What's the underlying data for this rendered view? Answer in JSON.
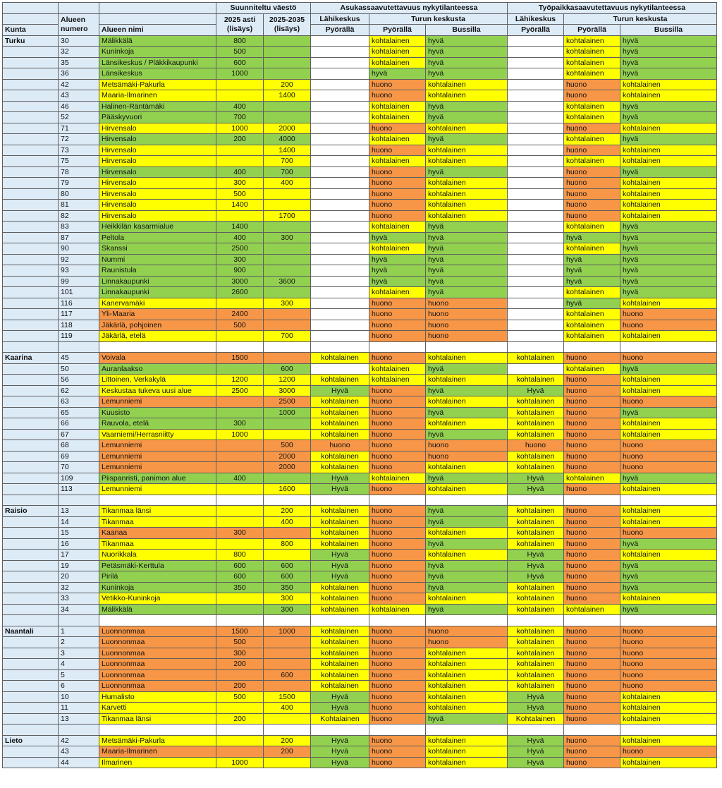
{
  "colors": {
    "good": "#92d050",
    "moderate": "#ffff00",
    "poor": "#f79646",
    "label_col": "#ddebf7"
  },
  "header": {
    "planned_population": "Suunniteltu väestö",
    "resident_access": "Asukassaavutettavuus nykytilanteessa",
    "workplace_access": "Työpaikkasaavutettavuus nykytilanteessa",
    "local_center": "Lähikeskus",
    "turku_center": "Turun keskusta",
    "kunta": "Kunta",
    "area_number": [
      "Alueen",
      "numero"
    ],
    "area_name": "Alueen nimi",
    "y2025": [
      "2025 asti",
      "(lisäys)"
    ],
    "y2035": [
      "2025-2035",
      "(lisäys)"
    ],
    "bike": "Pyörällä",
    "bus": "Bussilla"
  },
  "rows": [
    {
      "k": "Turku",
      "n": "30",
      "name": "Mälikkälä",
      "a": "800",
      "b": "",
      "lr": "",
      "br": "kohtalainen",
      "bus": "hyvä",
      "lw": "",
      "bw": "kohtalainen",
      "buw": "hyvä",
      "bg": "G"
    },
    {
      "k": "",
      "n": "32",
      "name": "Kuninkoja",
      "a": "500",
      "b": "",
      "lr": "",
      "br": "kohtalainen",
      "bus": "hyvä",
      "lw": "",
      "bw": "kohtalainen",
      "buw": "hyvä",
      "bg": "G"
    },
    {
      "k": "",
      "n": "35",
      "name": "Länsikeskus / Pläkkikaupunki",
      "a": "600",
      "b": "",
      "lr": "",
      "br": "kohtalainen",
      "bus": "hyvä",
      "lw": "",
      "bw": "kohtalainen",
      "buw": "hyvä",
      "bg": "G"
    },
    {
      "k": "",
      "n": "36",
      "name": "Länsikeskus",
      "a": "1000",
      "b": "",
      "lr": "",
      "br": "hyvä",
      "bus": "hyvä",
      "lw": "",
      "bw": "kohtalainen",
      "buw": "hyvä",
      "bg": "G"
    },
    {
      "k": "",
      "n": "42",
      "name": "Metsämäki-Pakurla",
      "a": "",
      "b": "200",
      "lr": "",
      "br": "huono",
      "bus": "kohtalainen",
      "lw": "",
      "bw": "huono",
      "buw": "kohtalainen",
      "bg": "Y"
    },
    {
      "k": "",
      "n": "43",
      "name": "Maaria-Ilmarinen",
      "a": "",
      "b": "1400",
      "lr": "",
      "br": "huono",
      "bus": "kohtalainen",
      "lw": "",
      "bw": "huono",
      "buw": "kohtalainen",
      "bg": "Y"
    },
    {
      "k": "",
      "n": "46",
      "name": "Halinen-Räntämäki",
      "a": "400",
      "b": "",
      "lr": "",
      "br": "kohtalainen",
      "bus": "hyvä",
      "lw": "",
      "bw": "kohtalainen",
      "buw": "hyvä",
      "bg": "G"
    },
    {
      "k": "",
      "n": "52",
      "name": "Pääskyvuori",
      "a": "700",
      "b": "",
      "lr": "",
      "br": "kohtalainen",
      "bus": "hyvä",
      "lw": "",
      "bw": "kohtalainen",
      "buw": "hyvä",
      "bg": "G"
    },
    {
      "k": "",
      "n": "71",
      "name": "Hirvensalo",
      "a": "1000",
      "b": "2000",
      "lr": "",
      "br": "huono",
      "bus": "kohtalainen",
      "lw": "",
      "bw": "huono",
      "buw": "kohtalainen",
      "bg": "Y"
    },
    {
      "k": "",
      "n": "72",
      "name": "Hirvensalo",
      "a": "200",
      "b": "4000",
      "lr": "",
      "br": "kohtalainen",
      "bus": "hyvä",
      "lw": "",
      "bw": "kohtalainen",
      "buw": "hyvä",
      "bg": "G"
    },
    {
      "k": "",
      "n": "73",
      "name": "Hirvensalo",
      "a": "",
      "b": "1400",
      "lr": "",
      "br": "huono",
      "bus": "kohtalainen",
      "lw": "",
      "bw": "huono",
      "buw": "kohtalainen",
      "bg": "Y"
    },
    {
      "k": "",
      "n": "75",
      "name": "Hirvensalo",
      "a": "",
      "b": "700",
      "lr": "",
      "br": "kohtalainen",
      "bus": "kohtalainen",
      "lw": "",
      "bw": "kohtalainen",
      "buw": "kohtalainen",
      "bg": "Y"
    },
    {
      "k": "",
      "n": "78",
      "name": "Hirvensalo",
      "a": "400",
      "b": "700",
      "lr": "",
      "br": "huono",
      "bus": "hyvä",
      "lw": "",
      "bw": "huono",
      "buw": "hyvä",
      "bg": "G"
    },
    {
      "k": "",
      "n": "79",
      "name": "Hirvensalo",
      "a": "300",
      "b": "400",
      "lr": "",
      "br": "huono",
      "bus": "kohtalainen",
      "lw": "",
      "bw": "huono",
      "buw": "kohtalainen",
      "bg": "Y"
    },
    {
      "k": "",
      "n": "80",
      "name": "Hirvensalo",
      "a": "500",
      "b": "",
      "lr": "",
      "br": "huono",
      "bus": "kohtalainen",
      "lw": "",
      "bw": "huono",
      "buw": "kohtalainen",
      "bg": "Y"
    },
    {
      "k": "",
      "n": "81",
      "name": "Hirvensalo",
      "a": "1400",
      "b": "",
      "lr": "",
      "br": "huono",
      "bus": "kohtalainen",
      "lw": "",
      "bw": "huono",
      "buw": "kohtalainen",
      "bg": "Y"
    },
    {
      "k": "",
      "n": "82",
      "name": "Hirvensalo",
      "a": "",
      "b": "1700",
      "lr": "",
      "br": "huono",
      "bus": "kohtalainen",
      "lw": "",
      "bw": "huono",
      "buw": "kohtalainen",
      "bg": "Y"
    },
    {
      "k": "",
      "n": "83",
      "name": "Heikkilän kasarmialue",
      "a": "1400",
      "b": "",
      "lr": "",
      "br": "kohtalainen",
      "bus": "hyvä",
      "lw": "",
      "bw": "kohtalainen",
      "buw": "hyvä",
      "bg": "G"
    },
    {
      "k": "",
      "n": "87",
      "name": "Peltola",
      "a": "400",
      "b": "300",
      "lr": "",
      "br": "hyvä",
      "bus": "hyvä",
      "lw": "",
      "bw": "hyvä",
      "buw": "hyvä",
      "bg": "G"
    },
    {
      "k": "",
      "n": "90",
      "name": "Skanssi",
      "a": "2500",
      "b": "",
      "lr": "",
      "br": "kohtalainen",
      "bus": "hyvä",
      "lw": "",
      "bw": "kohtalainen",
      "buw": "hyvä",
      "bg": "G"
    },
    {
      "k": "",
      "n": "92",
      "name": "Nummi",
      "a": "300",
      "b": "",
      "lr": "",
      "br": "hyvä",
      "bus": "hyvä",
      "lw": "",
      "bw": "hyvä",
      "buw": "hyvä",
      "bg": "G"
    },
    {
      "k": "",
      "n": "93",
      "name": "Raunistula",
      "a": "900",
      "b": "",
      "lr": "",
      "br": "hyvä",
      "bus": "hyvä",
      "lw": "",
      "bw": "hyvä",
      "buw": "hyvä",
      "bg": "G"
    },
    {
      "k": "",
      "n": "99",
      "name": "Linnakaupunki",
      "a": "3000",
      "b": "3600",
      "lr": "",
      "br": "hyvä",
      "bus": "hyvä",
      "lw": "",
      "bw": "hyvä",
      "buw": "hyvä",
      "bg": "G"
    },
    {
      "k": "",
      "n": "101",
      "name": "Linnakaupunki",
      "a": "2600",
      "b": "",
      "lr": "",
      "br": "kohtalainen",
      "bus": "hyvä",
      "lw": "",
      "bw": "kohtalainen",
      "buw": "hyvä",
      "bg": "G"
    },
    {
      "k": "",
      "n": "116",
      "name": "Kanervamäki",
      "a": "",
      "b": "300",
      "lr": "",
      "br": "huono",
      "bus": "huono",
      "lw": "",
      "bw": "hyvä",
      "buw": "kohtalainen",
      "bg": "Y"
    },
    {
      "k": "",
      "n": "117",
      "name": "Yli-Maaria",
      "a": "2400",
      "b": "",
      "lr": "",
      "br": "huono",
      "bus": "huono",
      "lw": "",
      "bw": "kohtalainen",
      "buw": "huono",
      "bg": "O"
    },
    {
      "k": "",
      "n": "118",
      "name": "Jäkärlä, pohjoinen",
      "a": "500",
      "b": "",
      "lr": "",
      "br": "huono",
      "bus": "huono",
      "lw": "",
      "bw": "kohtalainen",
      "buw": "huono",
      "bg": "O"
    },
    {
      "k": "",
      "n": "119",
      "name": "Jäkärlä, etelä",
      "a": "",
      "b": "700",
      "lr": "",
      "br": "huono",
      "bus": "huono",
      "lw": "",
      "bw": "kohtalainen",
      "buw": "kohtalainen",
      "bg": "Y"
    },
    null,
    {
      "k": "Kaarina",
      "n": "45",
      "name": "Voivala",
      "a": "1500",
      "b": "",
      "lr": "kohtalainen",
      "br": "huono",
      "bus": "kohtalainen",
      "lw": "kohtalainen",
      "bw": "huono",
      "buw": "huono",
      "bg": "O"
    },
    {
      "k": "",
      "n": "50",
      "name": "Auranlaakso",
      "a": "",
      "b": "600",
      "lr": "",
      "br": "kohtalainen",
      "bus": "hyvä",
      "lw": "",
      "bw": "kohtalainen",
      "buw": "hyvä",
      "bg": "G"
    },
    {
      "k": "",
      "n": "56",
      "name": "Littoinen, Verkakylä",
      "a": "1200",
      "b": "1200",
      "lr": "kohtalainen",
      "br": "kohtalainen",
      "bus": "kohtalainen",
      "lw": "kohtalainen",
      "bw": "huono",
      "buw": "kohtalainen",
      "bg": "Y"
    },
    {
      "k": "",
      "n": "62",
      "name": "Keskustaa tukeva uusi alue",
      "a": "2500",
      "b": "3000",
      "lr": "Hyvä",
      "br": "huono",
      "bus": "hyvä",
      "lw": "Hyvä",
      "bw": "huono",
      "buw": "kohtalainen",
      "bg": "Y"
    },
    {
      "k": "",
      "n": "63",
      "name": "Lemunniemi",
      "a": "",
      "b": "2500",
      "lr": "kohtalainen",
      "br": "huono",
      "bus": "kohtalainen",
      "lw": "kohtalainen",
      "bw": "huono",
      "buw": "huono",
      "bg": "O"
    },
    {
      "k": "",
      "n": "65",
      "name": "Kuusisto",
      "a": "",
      "b": "1000",
      "lr": "kohtalainen",
      "br": "huono",
      "bus": "hyvä",
      "lw": "kohtalainen",
      "bw": "huono",
      "buw": "hyvä",
      "bg": "G"
    },
    {
      "k": "",
      "n": "66",
      "name": "Rauvola, etelä",
      "a": "300",
      "b": "",
      "lr": "kohtalainen",
      "br": "huono",
      "bus": "kohtalainen",
      "lw": "kohtalainen",
      "bw": "huono",
      "buw": "kohtalainen",
      "bg": "G"
    },
    {
      "k": "",
      "n": "67",
      "name": "Vaarniemi/Herrasniitty",
      "a": "1000",
      "b": "",
      "lr": "kohtalainen",
      "br": "huono",
      "bus": "hyvä",
      "lw": "kohtalainen",
      "bw": "huono",
      "buw": "kohtalainen",
      "bg": "Y"
    },
    {
      "k": "",
      "n": "68",
      "name": "Lemunniemi",
      "a": "",
      "b": "500",
      "lr": "huono",
      "br": "huono",
      "bus": "huono",
      "lw": "huono",
      "bw": "huono",
      "buw": "huono",
      "bg": "O"
    },
    {
      "k": "",
      "n": "69",
      "name": "Lemunniemi",
      "a": "",
      "b": "2000",
      "lr": "kohtalainen",
      "br": "huono",
      "bus": "huono",
      "lw": "kohtalainen",
      "bw": "huono",
      "buw": "huono",
      "bg": "O"
    },
    {
      "k": "",
      "n": "70",
      "name": "Lemunniemi",
      "a": "",
      "b": "2000",
      "lr": "kohtalainen",
      "br": "huono",
      "bus": "kohtalainen",
      "lw": "kohtalainen",
      "bw": "huono",
      "buw": "huono",
      "bg": "O"
    },
    {
      "k": "",
      "n": "109",
      "name": "Piispanristi, panimon alue",
      "a": "400",
      "b": "",
      "lr": "Hyvä",
      "br": "kohtalainen",
      "bus": "hyvä",
      "lw": "Hyvä",
      "bw": "kohtalainen",
      "buw": "hyvä",
      "bg": "G"
    },
    {
      "k": "",
      "n": "113",
      "name": "Lemunniemi",
      "a": "",
      "b": "1600",
      "lr": "Hyvä",
      "br": "huono",
      "bus": "kohtalainen",
      "lw": "Hyvä",
      "bw": "huono",
      "buw": "kohtalainen",
      "bg": "Y"
    },
    null,
    {
      "k": "Raisio",
      "n": "13",
      "name": "Tikanmaa länsi",
      "a": "",
      "b": "200",
      "lr": "kohtalainen",
      "br": "huono",
      "bus": "hyvä",
      "lw": "kohtalainen",
      "bw": "huono",
      "buw": "kohtalainen",
      "bg": "Y"
    },
    {
      "k": "",
      "n": "14",
      "name": "Tikanmaa",
      "a": "",
      "b": "400",
      "lr": "kohtalainen",
      "br": "huono",
      "bus": "hyvä",
      "lw": "kohtalainen",
      "bw": "huono",
      "buw": "kohtalainen",
      "bg": "Y"
    },
    {
      "k": "",
      "n": "15",
      "name": "Kaanaa",
      "a": "300",
      "b": "",
      "lr": "kohtalainen",
      "br": "huono",
      "bus": "kohtalainen",
      "lw": "kohtalainen",
      "bw": "huono",
      "buw": "huono",
      "bg": "O"
    },
    {
      "k": "",
      "n": "16",
      "name": "Tikanmaa",
      "a": "",
      "b": "800",
      "lr": "kohtalainen",
      "br": "huono",
      "bus": "hyvä",
      "lw": "kohtalainen",
      "bw": "huono",
      "buw": "hyvä",
      "bg": "Y"
    },
    {
      "k": "",
      "n": "17",
      "name": "Nuorikkala",
      "a": "800",
      "b": "",
      "lr": "Hyvä",
      "br": "huono",
      "bus": "kohtalainen",
      "lw": "Hyvä",
      "bw": "huono",
      "buw": "kohtalainen",
      "bg": "Y"
    },
    {
      "k": "",
      "n": "19",
      "name": "Petäsmäki-Kerttula",
      "a": "600",
      "b": "600",
      "lr": "Hyvä",
      "br": "huono",
      "bus": "hyvä",
      "lw": "Hyvä",
      "bw": "huono",
      "buw": "hyvä",
      "bg": "G"
    },
    {
      "k": "",
      "n": "20",
      "name": "Pirilä",
      "a": "600",
      "b": "600",
      "lr": "Hyvä",
      "br": "huono",
      "bus": "hyvä",
      "lw": "Hyvä",
      "bw": "huono",
      "buw": "hyvä",
      "bg": "G"
    },
    {
      "k": "",
      "n": "32",
      "name": "Kuninkoja",
      "a": "350",
      "b": "350",
      "lr": "kohtalainen",
      "br": "huono",
      "bus": "hyvä",
      "lw": "kohtalainen",
      "bw": "huono",
      "buw": "hyvä",
      "bg": "G"
    },
    {
      "k": "",
      "n": "33",
      "name": "Vetikko-Kuninkoja",
      "a": "",
      "b": "300",
      "lr": "kohtalainen",
      "br": "huono",
      "bus": "kohtalainen",
      "lw": "kohtalainen",
      "bw": "huono",
      "buw": "kohtalainen",
      "bg": "Y"
    },
    {
      "k": "",
      "n": "34",
      "name": "Mälikkälä",
      "a": "",
      "b": "300",
      "lr": "kohtalainen",
      "br": "kohtalainen",
      "bus": "hyvä",
      "lw": "kohtalainen",
      "bw": "kohtalainen",
      "buw": "hyvä",
      "bg": "G"
    },
    null,
    {
      "k": "Naantali",
      "n": "1",
      "name": "Luonnonmaa",
      "a": "1500",
      "b": "1000",
      "lr": "kohtalainen",
      "br": "huono",
      "bus": "huono",
      "lw": "kohtalainen",
      "bw": "huono",
      "buw": "huono",
      "bg": "O"
    },
    {
      "k": "",
      "n": "2",
      "name": "Luonnonmaa",
      "a": "500",
      "b": "",
      "lr": "kohtalainen",
      "br": "huono",
      "bus": "huono",
      "lw": "kohtalainen",
      "bw": "huono",
      "buw": "huono",
      "bg": "O"
    },
    {
      "k": "",
      "n": "3",
      "name": "Luonnonmaa",
      "a": "300",
      "b": "",
      "lr": "kohtalainen",
      "br": "huono",
      "bus": "kohtalainen",
      "lw": "kohtalainen",
      "bw": "huono",
      "buw": "huono",
      "bg": "O"
    },
    {
      "k": "",
      "n": "4",
      "name": "Luonnonmaa",
      "a": "200",
      "b": "",
      "lr": "kohtalainen",
      "br": "huono",
      "bus": "kohtalainen",
      "lw": "kohtalainen",
      "bw": "huono",
      "buw": "huono",
      "bg": "O"
    },
    {
      "k": "",
      "n": "5",
      "name": "Luonnonmaa",
      "a": "",
      "b": "600",
      "lr": "kohtalainen",
      "br": "huono",
      "bus": "kohtalainen",
      "lw": "kohtalainen",
      "bw": "huono",
      "buw": "huono",
      "bg": "O"
    },
    {
      "k": "",
      "n": "6",
      "name": "Luonnonmaa",
      "a": "200",
      "b": "",
      "lr": "kohtalainen",
      "br": "huono",
      "bus": "kohtalainen",
      "lw": "kohtalainen",
      "bw": "huono",
      "buw": "huono",
      "bg": "O"
    },
    {
      "k": "",
      "n": "10",
      "name": "Humalisto",
      "a": "500",
      "b": "1500",
      "lr": "Hyvä",
      "br": "huono",
      "bus": "kohtalainen",
      "lw": "Hyvä",
      "bw": "huono",
      "buw": "kohtalainen",
      "bg": "Y"
    },
    {
      "k": "",
      "n": "11",
      "name": "Karvetti",
      "a": "",
      "b": "400",
      "lr": "Hyvä",
      "br": "huono",
      "bus": "kohtalainen",
      "lw": "Hyvä",
      "bw": "huono",
      "buw": "kohtalainen",
      "bg": "Y"
    },
    {
      "k": "",
      "n": "13",
      "name": "Tikanmaa länsi",
      "a": "200",
      "b": "",
      "lr": "Kohtalainen",
      "br": "huono",
      "bus": "hyvä",
      "lw": "Kohtalainen",
      "bw": "huono",
      "buw": "kohtalainen",
      "bg": "Y"
    },
    null,
    {
      "k": "Lieto",
      "n": "42",
      "name": "Metsämäki-Pakurla",
      "a": "",
      "b": "200",
      "lr": "Hyvä",
      "br": "huono",
      "bus": "kohtalainen",
      "lw": "Hyvä",
      "bw": "huono",
      "buw": "kohtalainen",
      "bg": "Y"
    },
    {
      "k": "",
      "n": "43",
      "name": "Maaria-Ilmarinen",
      "a": "",
      "b": "200",
      "lr": "Hyvä",
      "br": "huono",
      "bus": "kohtalainen",
      "lw": "Hyvä",
      "bw": "huono",
      "buw": "huono",
      "bg": "O"
    },
    {
      "k": "",
      "n": "44",
      "name": "Ilmarinen",
      "a": "1000",
      "b": "",
      "lr": "Hyvä",
      "br": "huono",
      "bus": "kohtalainen",
      "lw": "Hyvä",
      "bw": "huono",
      "buw": "kohtalainen",
      "bg": "Y"
    }
  ]
}
